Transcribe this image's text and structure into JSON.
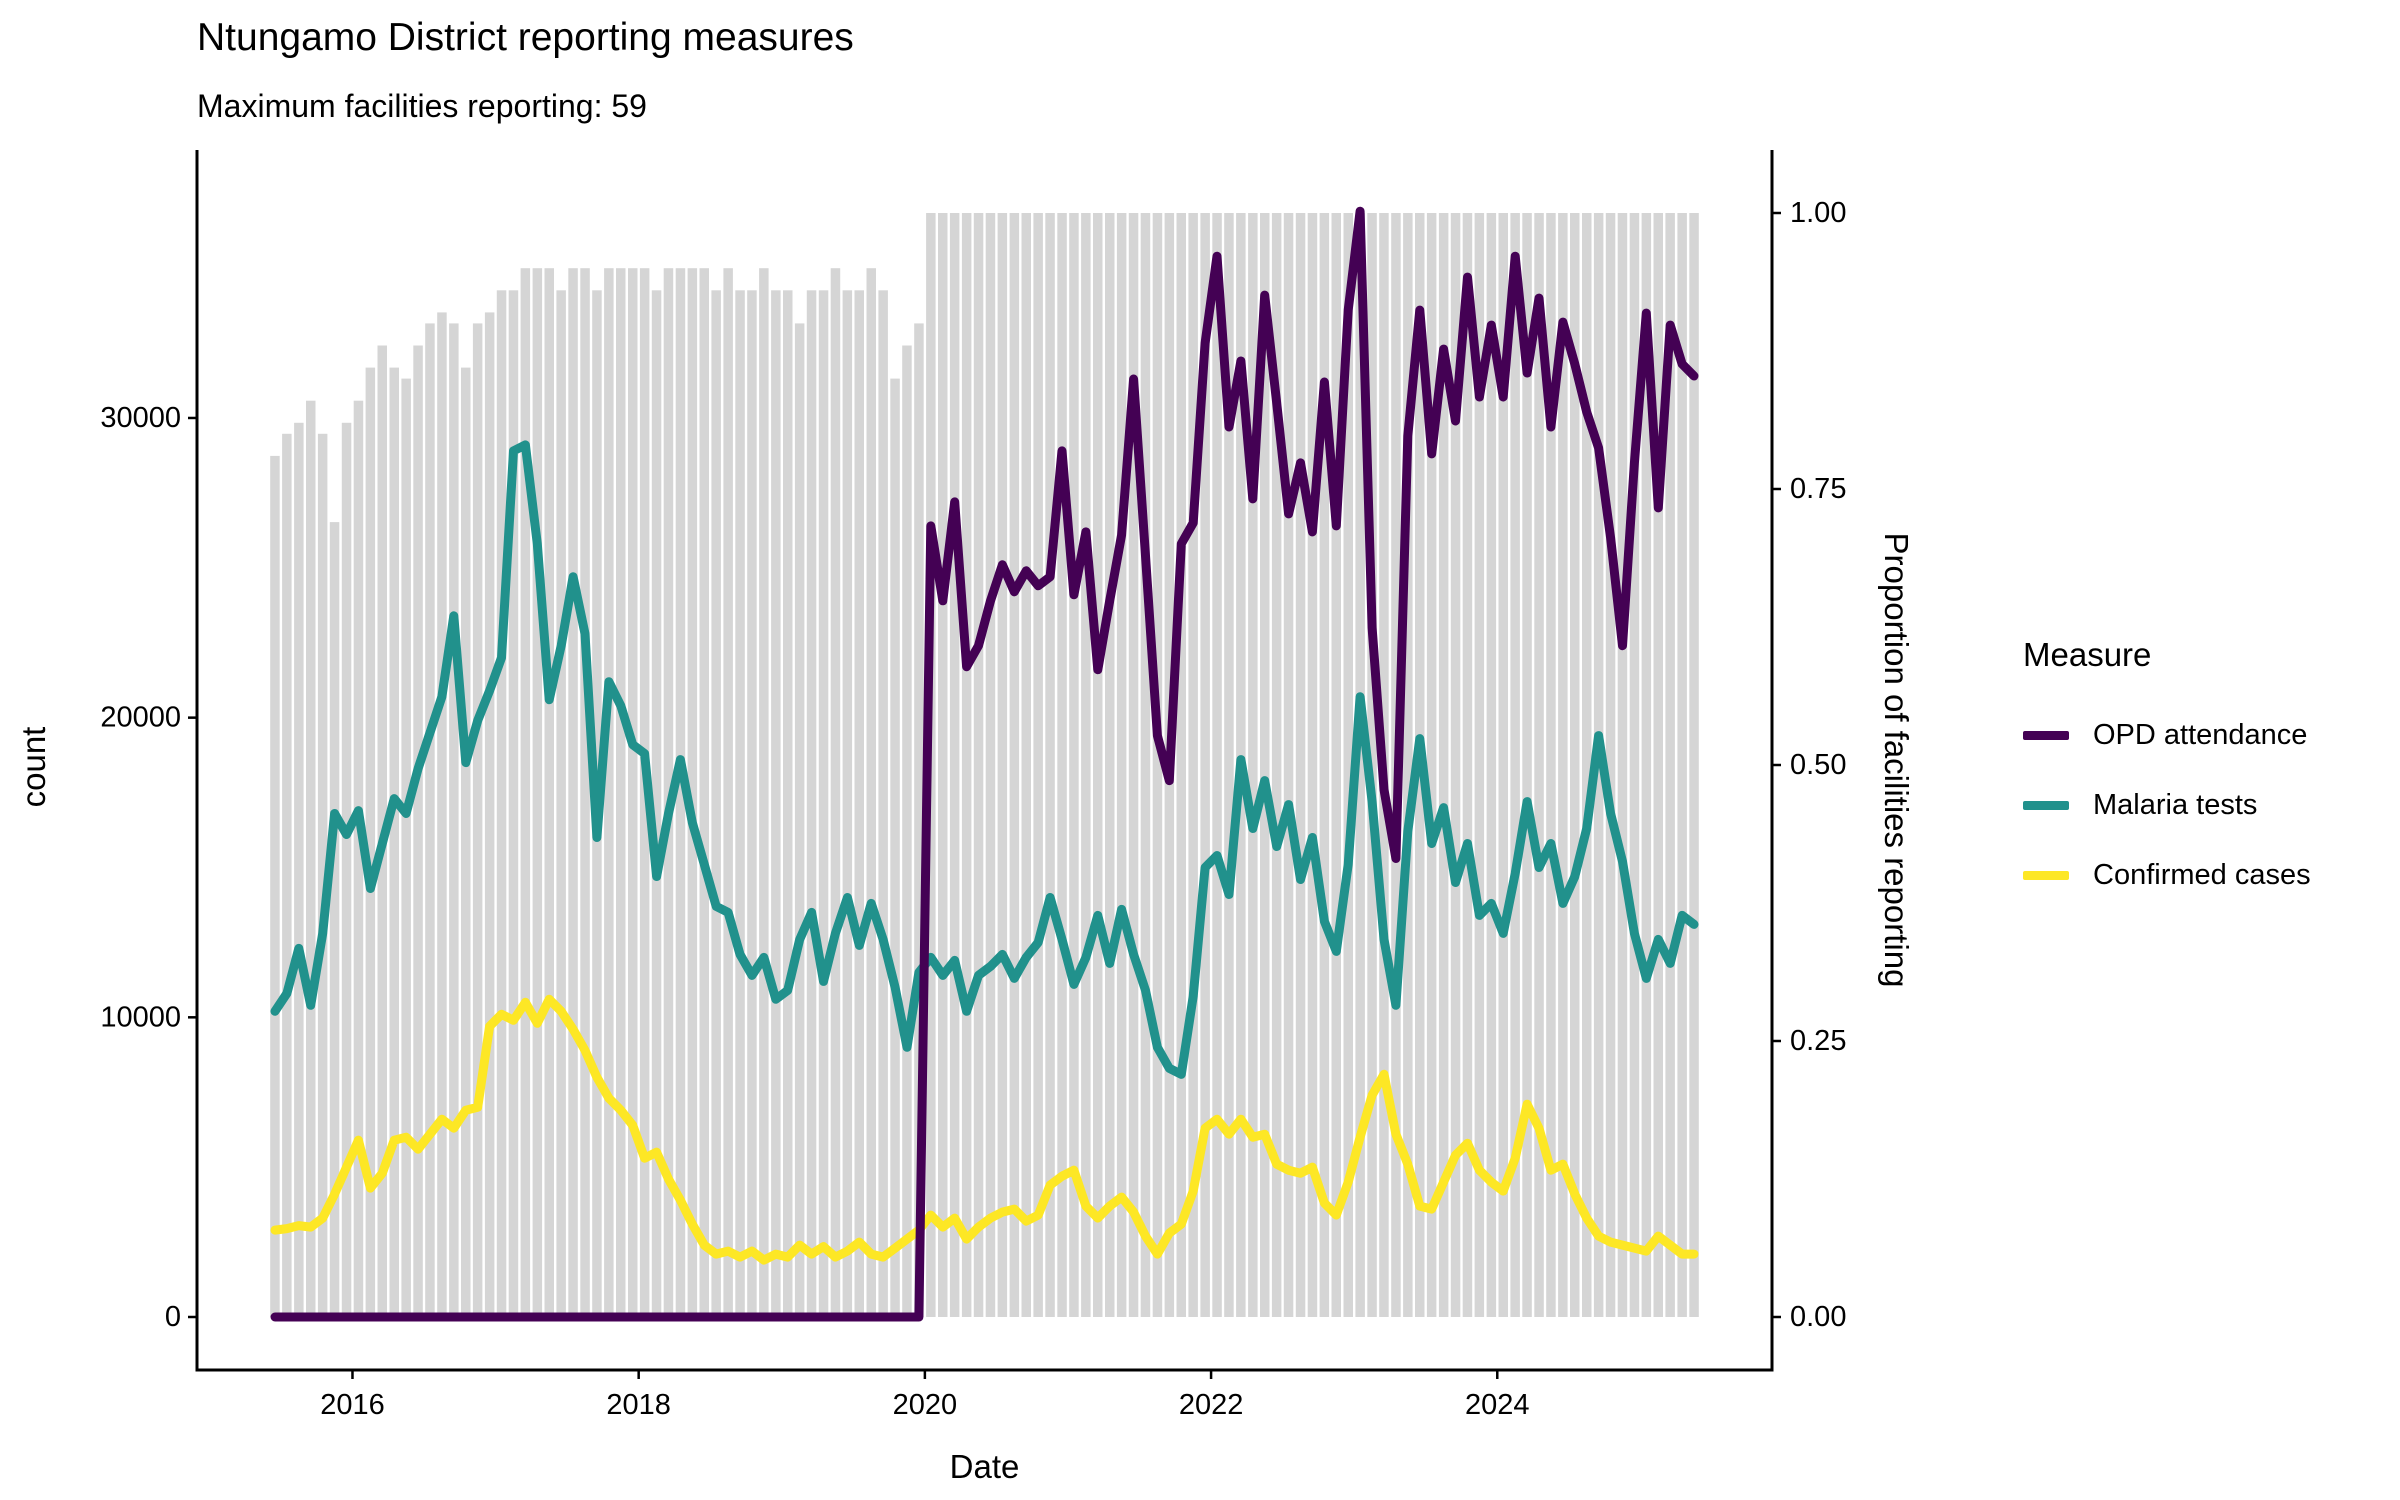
{
  "title": "Ntungamo District reporting measures",
  "subtitle": "Maximum facilities reporting: 59",
  "chart_data": {
    "type": "line",
    "title": "Ntungamo District reporting measures",
    "subtitle": "Maximum facilities reporting: 59",
    "x_axis": {
      "label": "Date",
      "start_month": "2015-06",
      "n_months": 120,
      "tick_years": [
        "2016",
        "2018",
        "2020",
        "2022",
        "2024"
      ]
    },
    "y_axis_left": {
      "label": "count",
      "tick_values": [
        0,
        10000,
        20000,
        30000
      ],
      "tick_labels": [
        "0",
        "10000",
        "20000",
        "30000"
      ],
      "range": [
        0,
        36840
      ]
    },
    "y_axis_right": {
      "label": "Proportion of facilities reporting",
      "tick_values": [
        0,
        0.25,
        0.5,
        0.75,
        1.0
      ],
      "tick_labels": [
        "0.00",
        "0.25",
        "0.50",
        "0.75",
        "1.00"
      ],
      "range": [
        0,
        1
      ]
    },
    "legend": {
      "title": "Measure",
      "position": "right",
      "entries": [
        {
          "label": "OPD attendance",
          "color": "#440154"
        },
        {
          "label": "Malaria tests",
          "color": "#21918c"
        },
        {
          "label": "Confirmed cases",
          "color": "#fde725"
        }
      ]
    },
    "bars": {
      "name": "Proportion of facilities reporting",
      "axis": "right",
      "color": "#d5d5d5",
      "values": [
        0.78,
        0.8,
        0.81,
        0.83,
        0.8,
        0.72,
        0.81,
        0.83,
        0.86,
        0.88,
        0.86,
        0.85,
        0.88,
        0.9,
        0.91,
        0.9,
        0.86,
        0.9,
        0.91,
        0.93,
        0.93,
        0.95,
        0.95,
        0.95,
        0.93,
        0.95,
        0.95,
        0.93,
        0.95,
        0.95,
        0.95,
        0.95,
        0.93,
        0.95,
        0.95,
        0.95,
        0.95,
        0.93,
        0.95,
        0.93,
        0.93,
        0.95,
        0.93,
        0.93,
        0.9,
        0.93,
        0.93,
        0.95,
        0.93,
        0.93,
        0.95,
        0.93,
        0.85,
        0.88,
        0.9,
        1,
        1,
        1,
        1,
        1,
        1,
        1,
        1,
        1,
        1,
        1,
        1,
        1,
        1,
        1,
        1,
        1,
        1,
        1,
        1,
        1,
        1,
        1,
        1,
        1,
        1,
        1,
        1,
        1,
        1,
        1,
        1,
        1,
        1,
        1,
        1,
        1,
        1,
        1,
        1,
        1,
        1,
        1,
        1,
        1,
        1,
        1,
        1,
        1,
        1,
        1,
        1,
        1,
        1,
        1,
        1,
        1,
        1,
        1,
        1,
        1,
        1,
        1,
        1,
        1
      ]
    },
    "series": [
      {
        "name": "OPD attendance",
        "axis": "left",
        "color": "#440154",
        "values": [
          0,
          0,
          0,
          0,
          0,
          0,
          0,
          0,
          0,
          0,
          0,
          0,
          0,
          0,
          0,
          0,
          0,
          0,
          0,
          0,
          0,
          0,
          0,
          0,
          0,
          0,
          0,
          0,
          0,
          0,
          0,
          0,
          0,
          0,
          0,
          0,
          0,
          0,
          0,
          0,
          0,
          0,
          0,
          0,
          0,
          0,
          0,
          0,
          0,
          0,
          0,
          0,
          0,
          0,
          0,
          26400,
          23900,
          27200,
          21700,
          22400,
          23900,
          25100,
          24200,
          24900,
          24400,
          24700,
          28900,
          24100,
          26200,
          21600,
          23900,
          26100,
          31300,
          25400,
          19400,
          17900,
          25800,
          26500,
          32500,
          35400,
          29700,
          31900,
          27300,
          34100,
          30500,
          26800,
          28500,
          26200,
          31200,
          26400,
          33600,
          36900,
          23000,
          17600,
          15300,
          29400,
          33600,
          28800,
          32300,
          29900,
          34700,
          30700,
          33100,
          30700,
          35400,
          31500,
          34000,
          29700,
          33200,
          31800,
          30200,
          29000,
          26000,
          22400,
          28500,
          33500,
          27000,
          33100,
          31800,
          31400
        ]
      },
      {
        "name": "Malaria tests",
        "axis": "left",
        "color": "#21918c",
        "values": [
          10200,
          10800,
          12300,
          10400,
          12800,
          16800,
          16100,
          16900,
          14300,
          15800,
          17300,
          16800,
          18300,
          19500,
          20700,
          23400,
          18500,
          19900,
          20900,
          22000,
          28900,
          29100,
          25800,
          20600,
          22400,
          24700,
          22800,
          16000,
          21200,
          20400,
          19100,
          18800,
          14700,
          16800,
          18600,
          16500,
          15100,
          13700,
          13500,
          12100,
          11400,
          12000,
          10600,
          10900,
          12600,
          13500,
          11200,
          12800,
          14000,
          12400,
          13800,
          12600,
          11000,
          9000,
          11500,
          12000,
          11400,
          11900,
          10200,
          11400,
          11700,
          12100,
          11300,
          12000,
          12500,
          14000,
          12600,
          11100,
          12000,
          13400,
          11800,
          13600,
          12100,
          10900,
          9000,
          8300,
          8100,
          10700,
          15000,
          15400,
          14100,
          18600,
          16300,
          17900,
          15700,
          17100,
          14600,
          16000,
          13200,
          12200,
          15100,
          20700,
          17200,
          12600,
          10400,
          16200,
          19300,
          15800,
          17000,
          14500,
          15800,
          13400,
          13800,
          12800,
          14800,
          17200,
          15000,
          15800,
          13800,
          14700,
          16300,
          19400,
          16800,
          15200,
          12800,
          11300,
          12600,
          11800,
          13400,
          13100
        ]
      },
      {
        "name": "Confirmed cases",
        "axis": "left",
        "color": "#fde725",
        "values": [
          2900,
          2950,
          3050,
          3000,
          3300,
          4100,
          5000,
          5900,
          4300,
          4800,
          5900,
          6000,
          5600,
          6100,
          6600,
          6300,
          6900,
          7000,
          9700,
          10100,
          9900,
          10500,
          9800,
          10600,
          10200,
          9600,
          8900,
          8000,
          7300,
          6900,
          6400,
          5300,
          5500,
          4600,
          3900,
          3100,
          2400,
          2100,
          2200,
          2000,
          2200,
          1900,
          2100,
          2000,
          2400,
          2100,
          2350,
          2000,
          2200,
          2500,
          2100,
          2000,
          2300,
          2600,
          2900,
          3400,
          3000,
          3300,
          2600,
          3000,
          3300,
          3500,
          3600,
          3200,
          3400,
          4400,
          4700,
          4900,
          3700,
          3300,
          3700,
          4000,
          3500,
          2700,
          2100,
          2800,
          3100,
          4200,
          6300,
          6600,
          6100,
          6600,
          6000,
          6100,
          5100,
          4900,
          4800,
          5000,
          3800,
          3400,
          4500,
          6000,
          7400,
          8100,
          6100,
          5100,
          3700,
          3600,
          4500,
          5400,
          5800,
          4900,
          4500,
          4200,
          5300,
          7100,
          6300,
          4900,
          5100,
          4100,
          3300,
          2700,
          2500,
          2400,
          2300,
          2200,
          2700,
          2400,
          2100,
          2100
        ]
      }
    ]
  }
}
